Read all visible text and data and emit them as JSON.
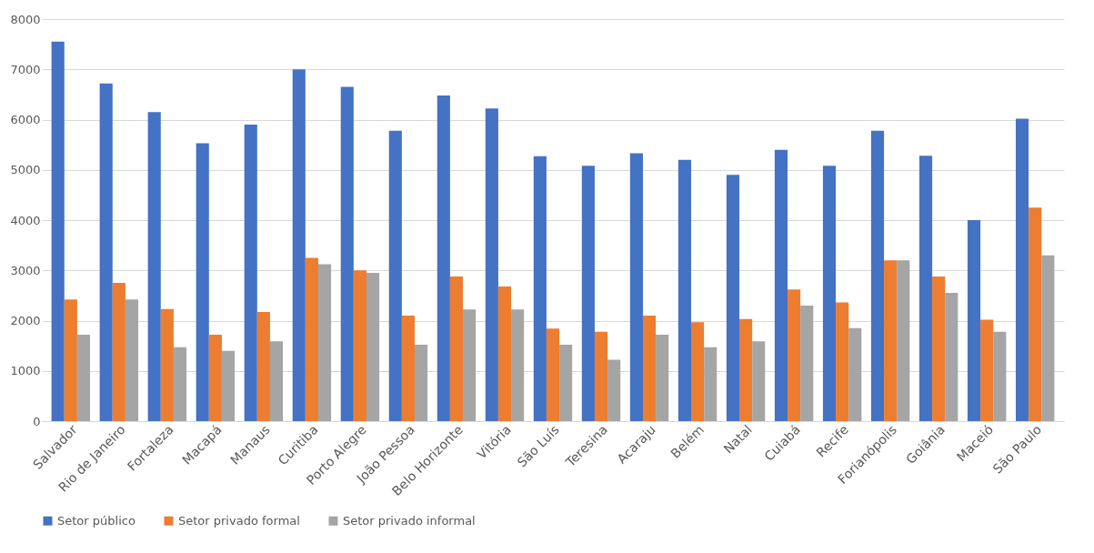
{
  "chart_data": {
    "type": "bar",
    "categories": [
      "Salvador",
      "Rio de Janeiro",
      "Fortaleza",
      "Macapá",
      "Manaus",
      "Curitiba",
      "Porto Alegre",
      "João Pessoa",
      "Belo Horizonte",
      "Vitória",
      "São Luís",
      "Teresina",
      "Acaraju",
      "Belém",
      "Natal",
      "Cuiabá",
      "Recife",
      "Forianópolis",
      "Goiânia",
      "Maceió",
      "São Paulo"
    ],
    "series": [
      {
        "name": "Setor público",
        "color": "#4472c4",
        "values": [
          7550,
          6720,
          6150,
          5530,
          5900,
          7000,
          6650,
          5780,
          6480,
          6220,
          5270,
          5080,
          5330,
          5200,
          4900,
          5400,
          5080,
          5780,
          5280,
          4000,
          6020
        ]
      },
      {
        "name": "Setor privado formal",
        "color": "#ed7d31",
        "values": [
          2420,
          2750,
          2230,
          1720,
          2170,
          3250,
          3000,
          2100,
          2880,
          2680,
          1840,
          1780,
          2100,
          1970,
          2030,
          2620,
          2360,
          3200,
          2880,
          2020,
          4250
        ]
      },
      {
        "name": "Setor privado informal",
        "color": "#a5a5a5",
        "values": [
          1720,
          2420,
          1470,
          1400,
          1590,
          3120,
          2950,
          1520,
          2220,
          2220,
          1520,
          1220,
          1720,
          1470,
          1590,
          2300,
          1850,
          3200,
          2550,
          1780,
          3300
        ]
      }
    ],
    "ylim": [
      0,
      8000
    ],
    "yticks": [
      0,
      1000,
      2000,
      3000,
      4000,
      5000,
      6000,
      7000,
      8000
    ],
    "grid": "y",
    "legend": "bottom"
  }
}
